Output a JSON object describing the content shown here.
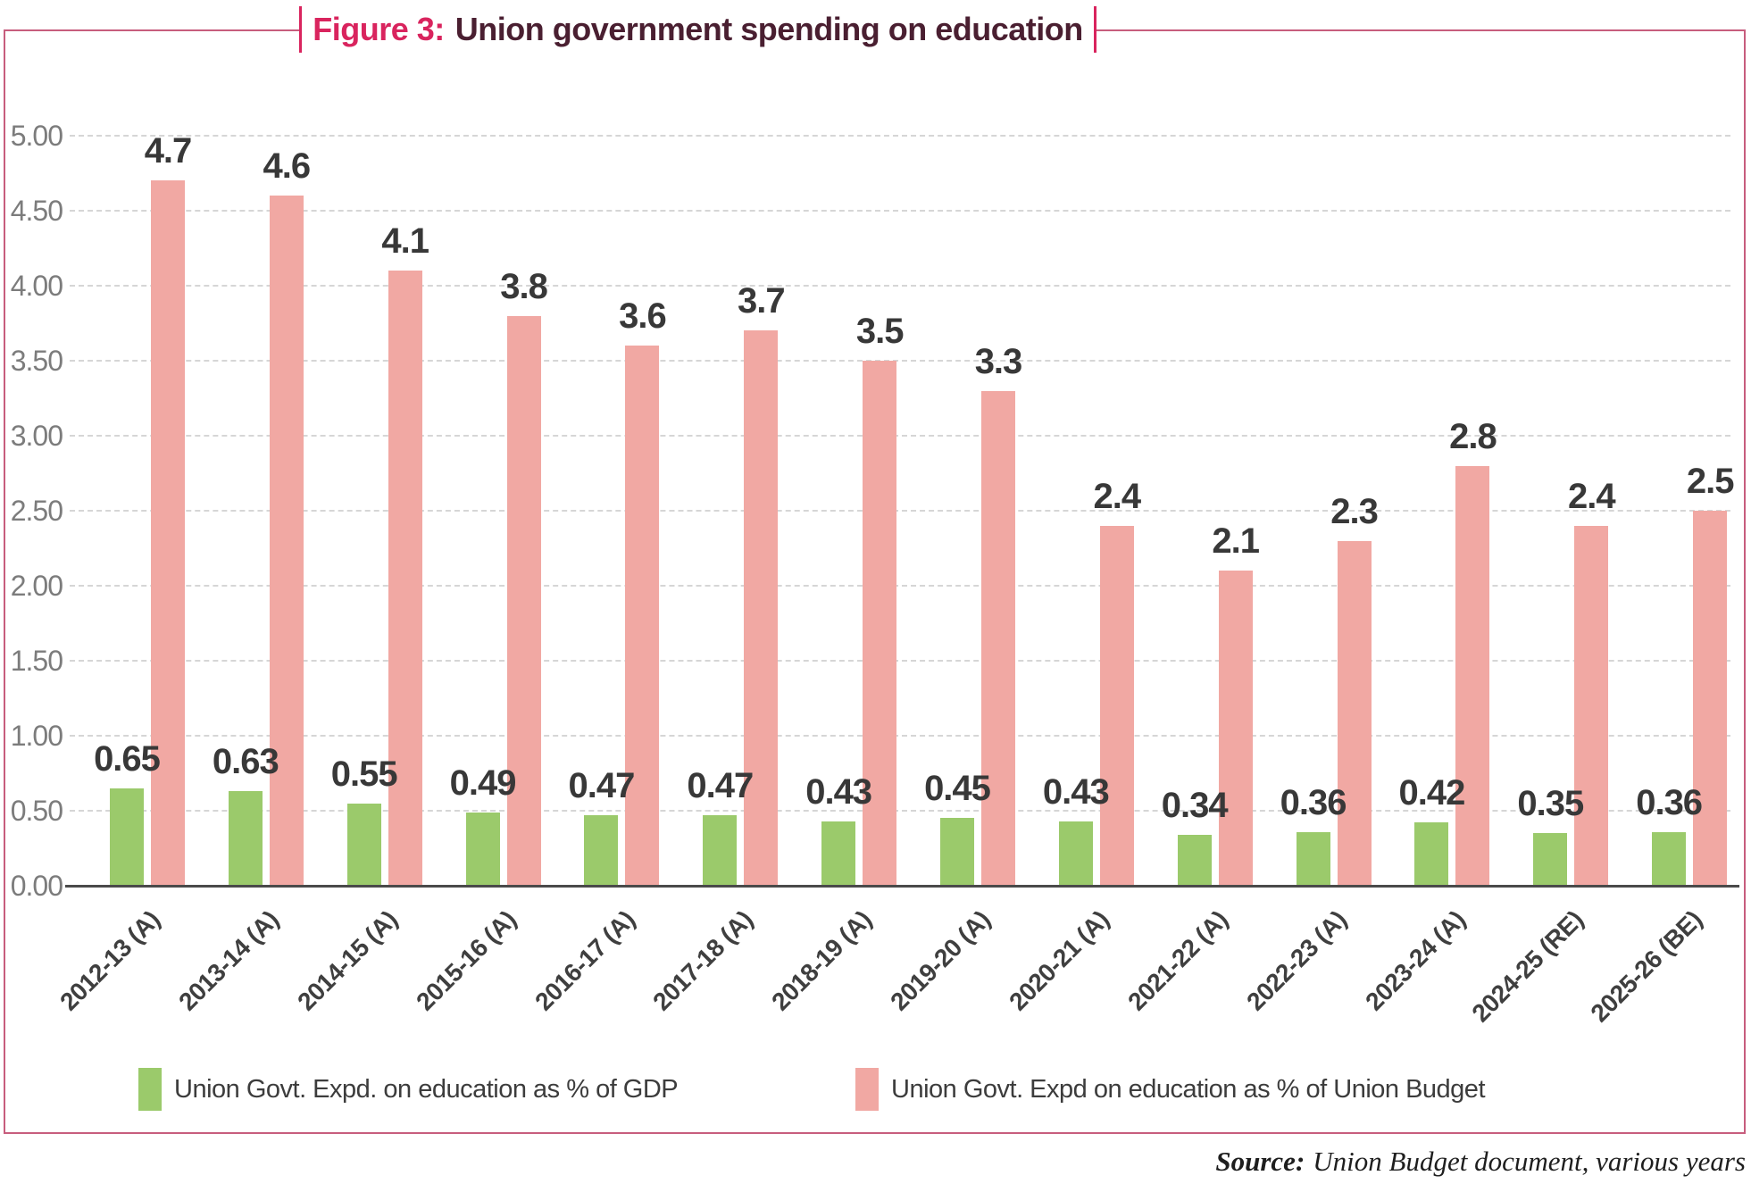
{
  "title": {
    "prefix": "Figure 3:",
    "text": "Union government spending on education"
  },
  "source": {
    "label": "Source:",
    "text": "Union Budget document, various years"
  },
  "legend": [
    {
      "label": "Union Govt. Expd. on education as % of GDP",
      "color": "#9BCA6B"
    },
    {
      "label": "Union Govt. Expd on education as % of Union Budget",
      "color": "#F1A8A3"
    }
  ],
  "colors": {
    "accent_crimson": "#D9245E",
    "title_maroon": "#4A1F31",
    "frame_border": "#C75D7D",
    "bar_green": "#9BCA6B",
    "bar_pink": "#F1A8A3",
    "grid_line": "#D6D6D6",
    "axis_line": "#4A4A4A",
    "y_tick_text": "#7C7C7C",
    "value_label_text": "#383838"
  },
  "chart_data": {
    "type": "bar",
    "title": "Figure 3: Union government spending on education",
    "xlabel": "",
    "ylabel": "",
    "ylim": [
      0,
      5
    ],
    "ytick_step": 0.5,
    "yticks": [
      "0.00",
      "0.50",
      "1.00",
      "1.50",
      "2.00",
      "2.50",
      "3.00",
      "3.50",
      "4.00",
      "4.50",
      "5.00"
    ],
    "grid": "horizontal-dashed",
    "legend_position": "bottom",
    "categories": [
      "2012-13 (A)",
      "2013-14 (A)",
      "2014-15 (A)",
      "2015-16 (A)",
      "2016-17 (A)",
      "2017-18 (A)",
      "2018-19 (A)",
      "2019-20 (A)",
      "2020-21 (A)",
      "2021-22 (A)",
      "2022-23 (A)",
      "2023-24 (A)",
      "2024-25 (RE)",
      "2025-26 (BE)"
    ],
    "series": [
      {
        "name": "Union Govt. Expd. on education as % of GDP",
        "color": "#9BCA6B",
        "values": [
          0.65,
          0.63,
          0.55,
          0.49,
          0.47,
          0.47,
          0.43,
          0.45,
          0.43,
          0.34,
          0.36,
          0.42,
          0.35,
          0.36
        ]
      },
      {
        "name": "Union Govt. Expd on education as % of Union Budget",
        "color": "#F1A8A3",
        "values": [
          4.7,
          4.6,
          4.1,
          3.8,
          3.6,
          3.7,
          3.5,
          3.3,
          2.4,
          2.1,
          2.3,
          2.8,
          2.4,
          2.5
        ]
      }
    ]
  }
}
